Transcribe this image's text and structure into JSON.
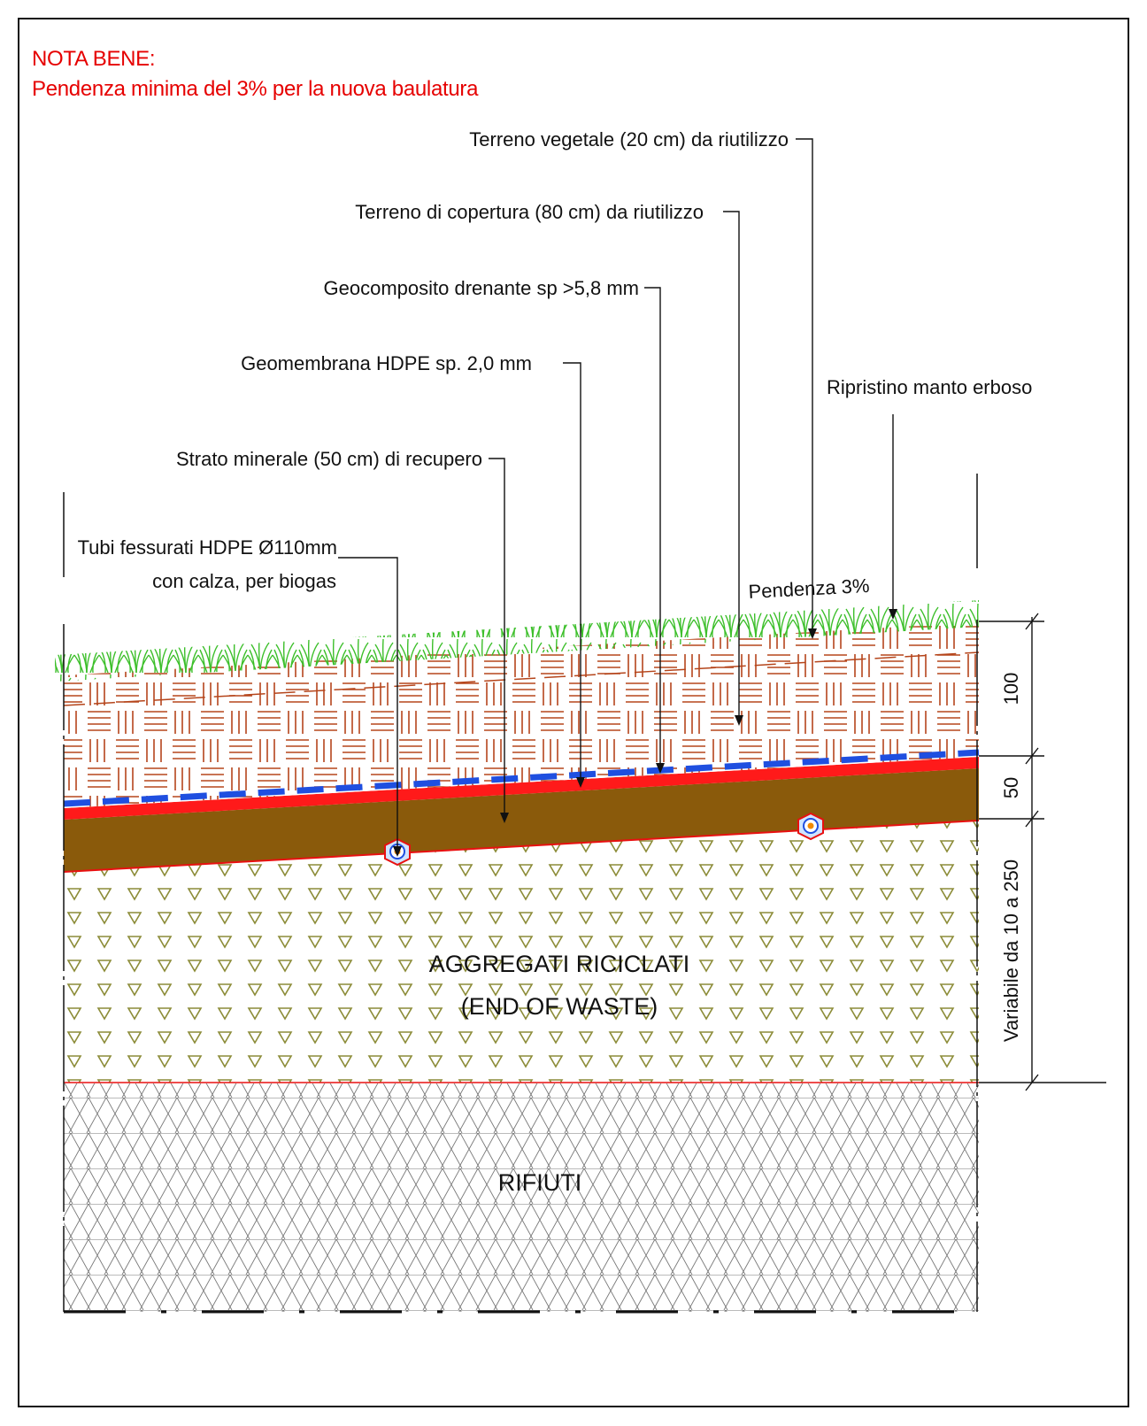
{
  "note": {
    "title": "NOTA BENE:",
    "text": "Pendenza minima del 3% per la nuova baulatura"
  },
  "labels": {
    "terreno_vegetale": "Terreno vegetale (20 cm)  da riutilizzo",
    "terreno_copertura": "Terreno di copertura (80 cm)  da riutilizzo",
    "geocomposito": "Geocomposito drenante sp >5,8 mm",
    "geomembrana": "Geomembrana HDPE sp. 2,0 mm",
    "ripristino": "Ripristino manto erboso",
    "strato_minerale": "Strato minerale (50 cm)  di recupero",
    "tubi_line1": "Tubi fessurati HDPE Ø110mm",
    "tubi_line2": "con calza, per biogas",
    "pendenza": "Pendenza 3%"
  },
  "layers": {
    "aggregati_line1": "AGGREGATI RICICLATI",
    "aggregati_line2": "(END OF WASTE)",
    "rifiuti": "RIFIUTI"
  },
  "dimensions": {
    "d100": "100",
    "d50": "50",
    "variabile": "Variabile da 10 a 250"
  },
  "colors": {
    "note_red": "#e60000",
    "grass_green": "#3cbf2a",
    "brick_lines": "#b5451b",
    "geomembrane_red": "#ff1a1a",
    "geocomposite_blue": "#1f4fe0",
    "mineral_brown": "#8a5a0b",
    "aggregate_olive": "#8c8c38",
    "waste_grey": "#777777"
  }
}
